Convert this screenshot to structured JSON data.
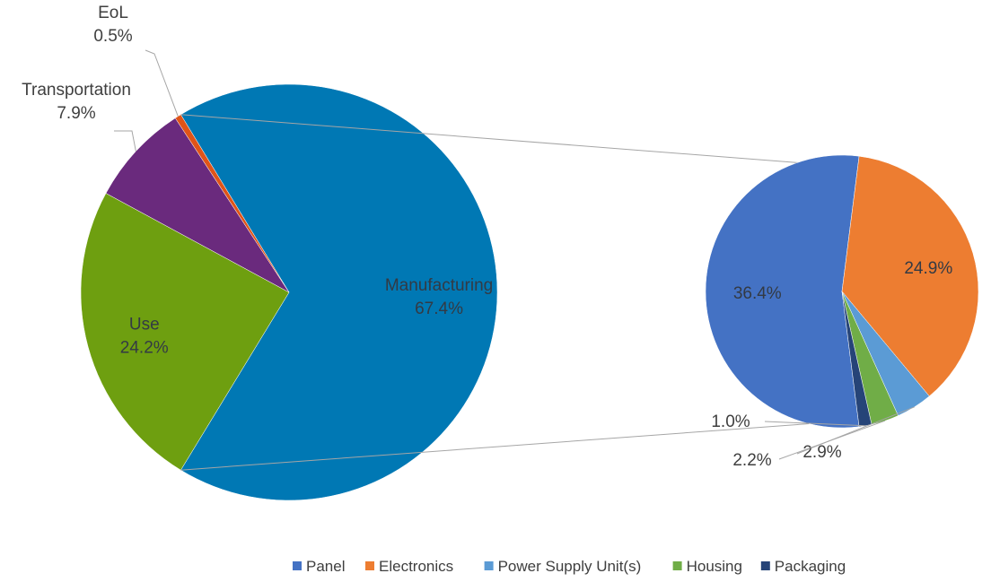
{
  "chart_data": {
    "type": "pie-of-pie",
    "main_pie": {
      "slices": [
        {
          "label": "Manufacturing",
          "value": 67.4,
          "value_label": "67.4%",
          "color": "#0078b4"
        },
        {
          "label": "Use",
          "value": 24.2,
          "value_label": "24.2%",
          "color": "#6e9f10"
        },
        {
          "label": "Transportation",
          "value": 7.9,
          "value_label": "7.9%",
          "color": "#6a2a7d"
        },
        {
          "label": "EoL",
          "value": 0.5,
          "value_label": "0.5%",
          "color": "#e05418"
        }
      ]
    },
    "breakdown_pie": {
      "of": "Manufacturing",
      "slices": [
        {
          "label": "Panel",
          "value": 36.4,
          "value_label": "36.4%",
          "color": "#4472c4"
        },
        {
          "label": "Electronics",
          "value": 24.9,
          "value_label": "24.9%",
          "color": "#ed7d31"
        },
        {
          "label": "Power Supply Unit(s)",
          "value": 2.9,
          "value_label": "2.9%",
          "color": "#5b9bd5"
        },
        {
          "label": "Housing",
          "value": 2.2,
          "value_label": "2.2%",
          "color": "#70ad47"
        },
        {
          "label": "Packaging",
          "value": 1.0,
          "value_label": "1.0%",
          "color": "#264478"
        }
      ]
    },
    "legend": {
      "placement": "bottom-right",
      "entries": [
        "Panel",
        "Electronics",
        "Power Supply Unit(s)",
        "Housing",
        "Packaging"
      ]
    }
  }
}
